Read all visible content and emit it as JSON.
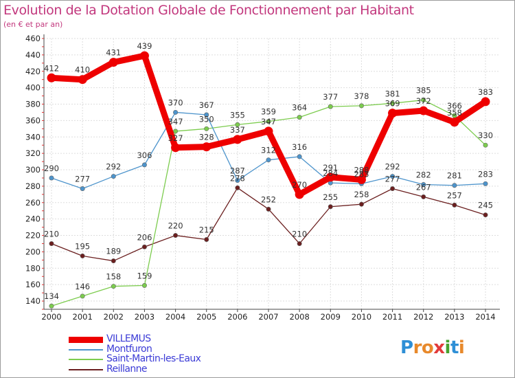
{
  "title": "Evolution de la Dotation Globale de Fonctionnement par Habitant",
  "subtitle": "(en € et par an)",
  "logo": {
    "text": "Proxiti",
    "letter_colors": [
      "#2e8fd6",
      "#e8892b",
      "#e8892b",
      "#e23b3b",
      "#47a32f",
      "#2e8fd6",
      "#e8892b"
    ]
  },
  "chart_data": {
    "type": "line",
    "title": "Evolution de la Dotation Globale de Fonctionnement par Habitant",
    "subtitle": "(en € et par an)",
    "x": [
      "2000",
      "2001",
      "2002",
      "2003",
      "2004",
      "2005",
      "2006",
      "2007",
      "2008",
      "2009",
      "2010",
      "2011",
      "2012",
      "2013",
      "2014"
    ],
    "ylim": [
      130,
      460
    ],
    "yticks": [
      140,
      160,
      180,
      200,
      220,
      240,
      260,
      280,
      300,
      320,
      340,
      360,
      380,
      400,
      420,
      440,
      460
    ],
    "grid": true,
    "legend_position": "bottom-left",
    "series": [
      {
        "name": "VILLEMUS",
        "color": "#ee0000",
        "emphasis": true,
        "values": [
          412,
          410,
          431,
          439,
          327,
          328,
          337,
          347,
          270,
          291,
          288,
          369,
          372,
          358,
          383
        ],
        "labels": [
          "412",
          "410",
          "431",
          "439",
          "327",
          "328",
          "337",
          "347",
          "270",
          "291",
          "288",
          "369",
          "372",
          "358",
          "383"
        ]
      },
      {
        "name": "Montfuron",
        "color": "#4d94cc",
        "emphasis": false,
        "values": [
          290,
          277,
          292,
          306,
          370,
          367,
          287,
          312,
          316,
          284,
          283,
          292,
          282,
          281,
          283
        ],
        "labels": [
          "290",
          "277",
          "292",
          "306",
          "370",
          "367",
          "287",
          "312",
          "316",
          "284",
          "283",
          "292",
          "282",
          "281",
          "283"
        ]
      },
      {
        "name": "Saint-Martin-les-Eaux",
        "color": "#7ccc4e",
        "emphasis": false,
        "values": [
          134,
          146,
          158,
          159,
          347,
          350,
          355,
          359,
          364,
          377,
          378,
          381,
          385,
          366,
          330
        ],
        "labels": [
          "134",
          "146",
          "158",
          "159",
          "347",
          "350",
          "355",
          "359",
          "364",
          "377",
          "378",
          "381",
          "385",
          "366",
          "330"
        ]
      },
      {
        "name": "Reillanne",
        "color": "#6b1f1f",
        "emphasis": false,
        "values": [
          210,
          195,
          189,
          206,
          220,
          215,
          278,
          252,
          210,
          255,
          258,
          277,
          267,
          257,
          245
        ],
        "labels": [
          "210",
          "195",
          "189",
          "206",
          "220",
          "215",
          "278",
          "252",
          "210",
          "255",
          "258",
          "277",
          "267",
          "257",
          "245"
        ]
      }
    ]
  }
}
